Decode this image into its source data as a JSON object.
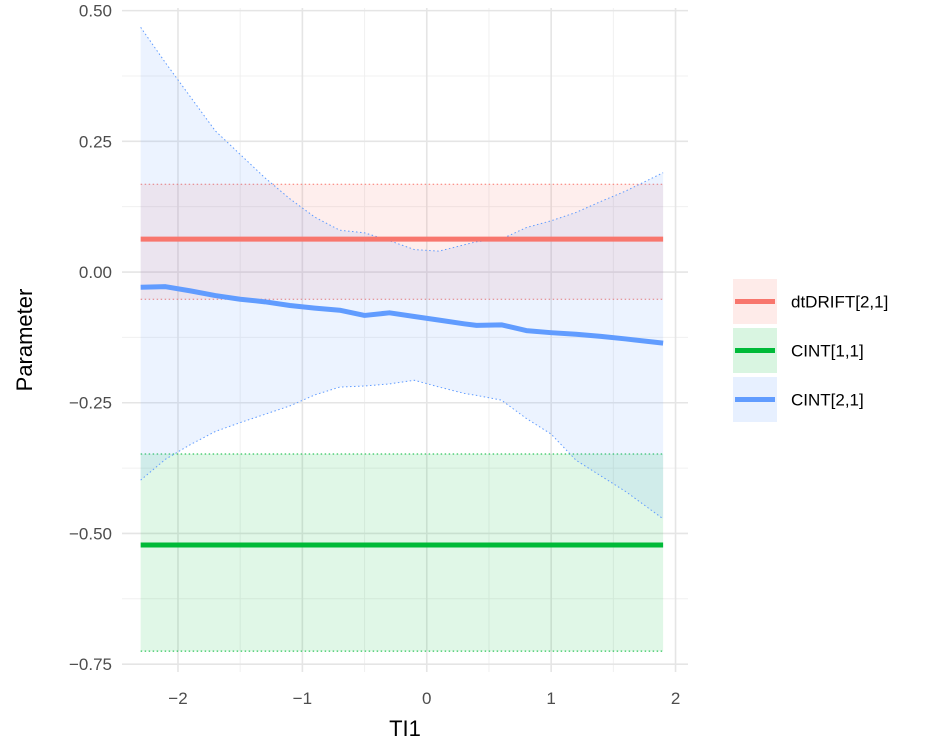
{
  "chart_data": {
    "type": "line",
    "title": "",
    "xlabel": "TI1",
    "ylabel": "Parameter",
    "xlim": [
      -2.45,
      2.1
    ],
    "ylim": [
      -0.765,
      0.505
    ],
    "x_ticks": [
      {
        "value": -2,
        "label": "−2"
      },
      {
        "value": -1,
        "label": "−1"
      },
      {
        "value": 0,
        "label": "0"
      },
      {
        "value": 1,
        "label": "1"
      },
      {
        "value": 2,
        "label": "2"
      }
    ],
    "y_ticks": [
      {
        "value": 0.5,
        "label": "0.50"
      },
      {
        "value": 0.25,
        "label": "0.25"
      },
      {
        "value": 0,
        "label": "0.00"
      },
      {
        "value": -0.25,
        "label": "−0.25"
      },
      {
        "value": -0.5,
        "label": "−0.50"
      },
      {
        "value": -0.75,
        "label": "−0.75"
      }
    ],
    "grid": true,
    "legend_position": "right",
    "series": [
      {
        "name": "dtDRIFT[2,1]",
        "color": "#F8766D",
        "x": [
          -2.3,
          1.9
        ],
        "y": [
          0.063,
          0.063
        ],
        "lower": [
          -0.052,
          -0.052
        ],
        "upper": [
          0.168,
          0.168
        ]
      },
      {
        "name": "CINT[1,1]",
        "color": "#00BA38",
        "x": [
          -2.3,
          1.9
        ],
        "y": [
          -0.522,
          -0.522
        ],
        "lower": [
          -0.725,
          -0.725
        ],
        "upper": [
          -0.348,
          -0.348
        ]
      },
      {
        "name": "CINT[2,1]",
        "color": "#619CFF",
        "x": [
          -2.3,
          -2.1,
          -1.9,
          -1.7,
          -1.5,
          -1.3,
          -1.1,
          -0.9,
          -0.7,
          -0.5,
          -0.3,
          -0.1,
          0.1,
          0.3,
          0.4,
          0.6,
          0.8,
          1.0,
          1.2,
          1.4,
          1.6,
          1.9
        ],
        "y": [
          -0.029,
          -0.028,
          -0.036,
          -0.045,
          -0.052,
          -0.057,
          -0.064,
          -0.069,
          -0.073,
          -0.083,
          -0.078,
          -0.085,
          -0.092,
          -0.099,
          -0.102,
          -0.101,
          -0.112,
          -0.116,
          -0.119,
          -0.123,
          -0.128,
          -0.136
        ],
        "lower": [
          -0.398,
          -0.358,
          -0.33,
          -0.305,
          -0.288,
          -0.272,
          -0.256,
          -0.235,
          -0.22,
          -0.218,
          -0.214,
          -0.207,
          -0.22,
          -0.232,
          -0.236,
          -0.245,
          -0.28,
          -0.31,
          -0.36,
          -0.39,
          -0.42,
          -0.472
        ],
        "upper": [
          0.468,
          0.4,
          0.335,
          0.27,
          0.225,
          0.18,
          0.14,
          0.105,
          0.08,
          0.075,
          0.06,
          0.043,
          0.04,
          0.052,
          0.058,
          0.063,
          0.085,
          0.098,
          0.114,
          0.135,
          0.155,
          0.19
        ]
      }
    ]
  }
}
